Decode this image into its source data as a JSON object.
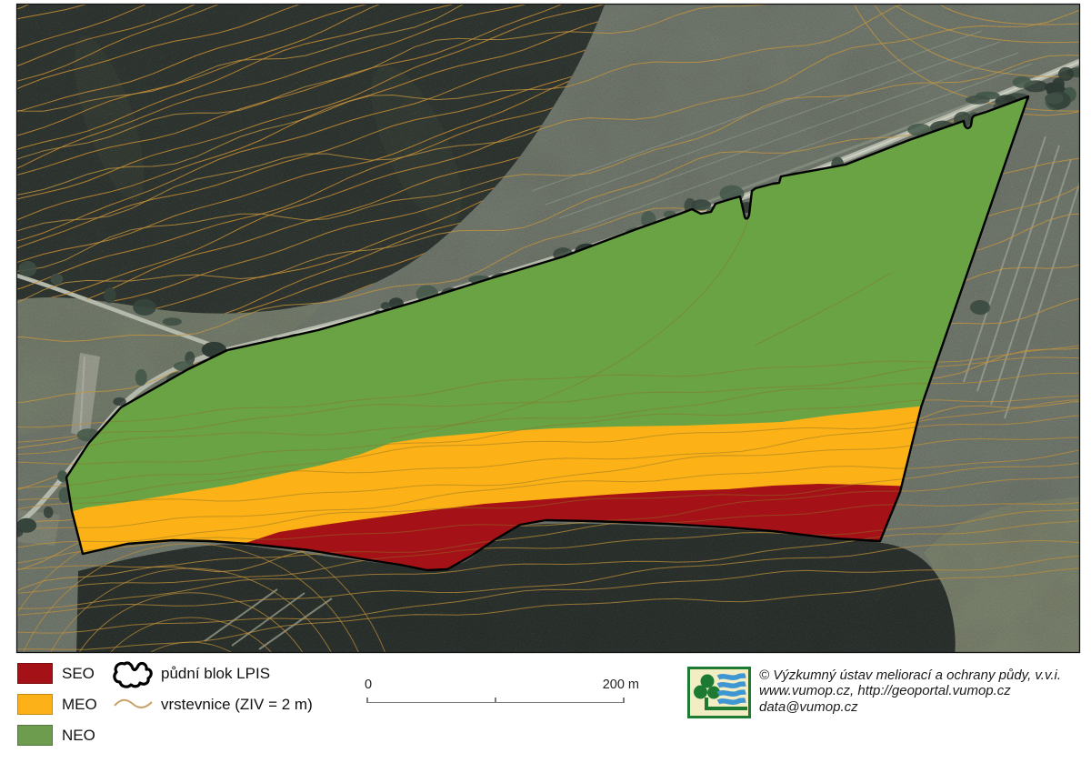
{
  "legend": {
    "items": [
      {
        "code": "SEO",
        "color": "#a41217"
      },
      {
        "code": "MEO",
        "color": "#fbb117"
      },
      {
        "code": "NEO",
        "color": "#6d9c4e"
      }
    ],
    "lpis_label": "půdní blok LPIS",
    "contour_label": "vrstevnice (ZIV = 2 m)"
  },
  "scalebar": {
    "start_label": "0",
    "end_label": "200 m"
  },
  "credits": {
    "line1": "© Výzkumný ústav meliorací a ochrany půdy, v.v.i.",
    "line2": "www.vumop.cz, http://geoportal.vumop.cz",
    "line3": "data@vumop.cz"
  },
  "map": {
    "zones": {
      "neo": {
        "code": "NEO",
        "color": "#69a344"
      },
      "meo": {
        "code": "MEO",
        "color": "#fcb216"
      },
      "seo": {
        "code": "SEO",
        "color": "#a41217"
      }
    },
    "contour_color": "#c4953f"
  }
}
